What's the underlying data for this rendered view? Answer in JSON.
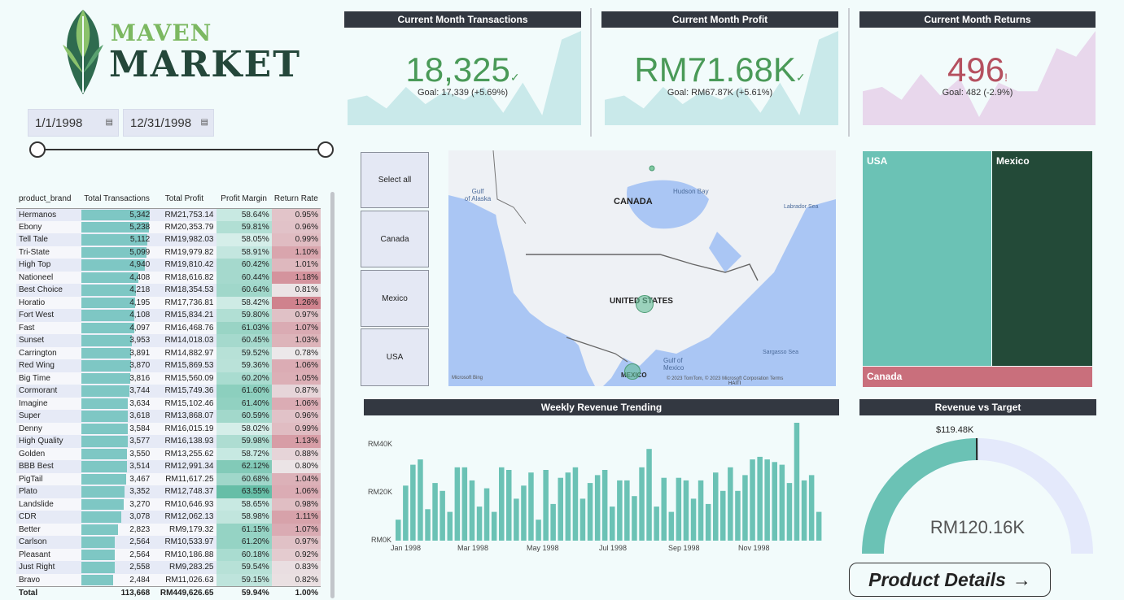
{
  "logo": {
    "line1": "MAVEN",
    "line2": "MARKET"
  },
  "date_filter": {
    "start": "1/1/1998",
    "end": "12/31/1998"
  },
  "kpis": [
    {
      "title": "Current Month Transactions",
      "value": "18,325",
      "mark": "✓",
      "goal": "Goal: 17,339 (+5.69%)",
      "color": "#4a9a58",
      "spark_color": "#c9e9ea",
      "spark": [
        0.2,
        0.25,
        0.1,
        0.35,
        0.15,
        0.3,
        0.2,
        0.35,
        0.05,
        0.4,
        0.02,
        0.9,
        1.0
      ]
    },
    {
      "title": "Current Month Profit",
      "value": "RM71.68K",
      "mark": "✓",
      "goal": "Goal: RM67.87K (+5.61%)",
      "color": "#4a9a58",
      "spark_color": "#c9e9ea",
      "spark": [
        0.2,
        0.25,
        0.1,
        0.35,
        0.15,
        0.3,
        0.2,
        0.35,
        0.05,
        0.4,
        0.02,
        0.9,
        1.0
      ]
    },
    {
      "title": "Current Month Returns",
      "value": "496",
      "mark": "!",
      "goal": "Goal: 482 (-2.9%)",
      "color": "#b5505f",
      "spark_color": "#e8d7ec",
      "spark": [
        0.3,
        0.35,
        0.2,
        0.5,
        0.25,
        0.45,
        0.0,
        0.4,
        0.3,
        0.3,
        0.8,
        0.7,
        1.0
      ]
    }
  ],
  "brand_table": {
    "headers": [
      "product_brand",
      "Total Transactions",
      "Total Profit",
      "Profit Margin",
      "Return Rate"
    ],
    "rows": [
      {
        "brand": "Hermanos",
        "tx": "5,342",
        "tx_n": 5342,
        "profit": "RM21,753.14",
        "margin": "58.64%",
        "margin_n": 58.64,
        "ret": "0.95%",
        "ret_n": 0.95
      },
      {
        "brand": "Ebony",
        "tx": "5,238",
        "tx_n": 5238,
        "profit": "RM20,353.79",
        "margin": "59.81%",
        "margin_n": 59.81,
        "ret": "0.96%",
        "ret_n": 0.96
      },
      {
        "brand": "Tell Tale",
        "tx": "5,112",
        "tx_n": 5112,
        "profit": "RM19,982.03",
        "margin": "58.05%",
        "margin_n": 58.05,
        "ret": "0.99%",
        "ret_n": 0.99
      },
      {
        "brand": "Tri-State",
        "tx": "5,099",
        "tx_n": 5099,
        "profit": "RM19,979.82",
        "margin": "58.91%",
        "margin_n": 58.91,
        "ret": "1.10%",
        "ret_n": 1.1
      },
      {
        "brand": "High Top",
        "tx": "4,940",
        "tx_n": 4940,
        "profit": "RM19,810.42",
        "margin": "60.42%",
        "margin_n": 60.42,
        "ret": "1.01%",
        "ret_n": 1.01
      },
      {
        "brand": "Nationeel",
        "tx": "4,408",
        "tx_n": 4408,
        "profit": "RM18,616.82",
        "margin": "60.44%",
        "margin_n": 60.44,
        "ret": "1.18%",
        "ret_n": 1.18
      },
      {
        "brand": "Best Choice",
        "tx": "4,218",
        "tx_n": 4218,
        "profit": "RM18,354.53",
        "margin": "60.64%",
        "margin_n": 60.64,
        "ret": "0.81%",
        "ret_n": 0.81
      },
      {
        "brand": "Horatio",
        "tx": "4,195",
        "tx_n": 4195,
        "profit": "RM17,736.81",
        "margin": "58.42%",
        "margin_n": 58.42,
        "ret": "1.26%",
        "ret_n": 1.26
      },
      {
        "brand": "Fort West",
        "tx": "4,108",
        "tx_n": 4108,
        "profit": "RM15,834.21",
        "margin": "59.80%",
        "margin_n": 59.8,
        "ret": "0.97%",
        "ret_n": 0.97
      },
      {
        "brand": "Fast",
        "tx": "4,097",
        "tx_n": 4097,
        "profit": "RM16,468.76",
        "margin": "61.03%",
        "margin_n": 61.03,
        "ret": "1.07%",
        "ret_n": 1.07
      },
      {
        "brand": "Sunset",
        "tx": "3,953",
        "tx_n": 3953,
        "profit": "RM14,018.03",
        "margin": "60.45%",
        "margin_n": 60.45,
        "ret": "1.03%",
        "ret_n": 1.03
      },
      {
        "brand": "Carrington",
        "tx": "3,891",
        "tx_n": 3891,
        "profit": "RM14,882.97",
        "margin": "59.52%",
        "margin_n": 59.52,
        "ret": "0.78%",
        "ret_n": 0.78
      },
      {
        "brand": "Red Wing",
        "tx": "3,870",
        "tx_n": 3870,
        "profit": "RM15,869.53",
        "margin": "59.36%",
        "margin_n": 59.36,
        "ret": "1.06%",
        "ret_n": 1.06
      },
      {
        "brand": "Big Time",
        "tx": "3,816",
        "tx_n": 3816,
        "profit": "RM15,560.09",
        "margin": "60.20%",
        "margin_n": 60.2,
        "ret": "1.05%",
        "ret_n": 1.05
      },
      {
        "brand": "Cormorant",
        "tx": "3,744",
        "tx_n": 3744,
        "profit": "RM15,749.36",
        "margin": "61.60%",
        "margin_n": 61.6,
        "ret": "0.87%",
        "ret_n": 0.87
      },
      {
        "brand": "Imagine",
        "tx": "3,634",
        "tx_n": 3634,
        "profit": "RM15,102.46",
        "margin": "61.40%",
        "margin_n": 61.4,
        "ret": "1.06%",
        "ret_n": 1.06
      },
      {
        "brand": "Super",
        "tx": "3,618",
        "tx_n": 3618,
        "profit": "RM13,868.07",
        "margin": "60.59%",
        "margin_n": 60.59,
        "ret": "0.96%",
        "ret_n": 0.96
      },
      {
        "brand": "Denny",
        "tx": "3,584",
        "tx_n": 3584,
        "profit": "RM16,015.19",
        "margin": "58.02%",
        "margin_n": 58.02,
        "ret": "0.99%",
        "ret_n": 0.99
      },
      {
        "brand": "High Quality",
        "tx": "3,577",
        "tx_n": 3577,
        "profit": "RM16,138.93",
        "margin": "59.98%",
        "margin_n": 59.98,
        "ret": "1.13%",
        "ret_n": 1.13
      },
      {
        "brand": "Golden",
        "tx": "3,550",
        "tx_n": 3550,
        "profit": "RM13,255.62",
        "margin": "58.72%",
        "margin_n": 58.72,
        "ret": "0.88%",
        "ret_n": 0.88
      },
      {
        "brand": "BBB Best",
        "tx": "3,514",
        "tx_n": 3514,
        "profit": "RM12,991.34",
        "margin": "62.12%",
        "margin_n": 62.12,
        "ret": "0.80%",
        "ret_n": 0.8
      },
      {
        "brand": "PigTail",
        "tx": "3,467",
        "tx_n": 3467,
        "profit": "RM11,617.25",
        "margin": "60.68%",
        "margin_n": 60.68,
        "ret": "1.04%",
        "ret_n": 1.04
      },
      {
        "brand": "Plato",
        "tx": "3,352",
        "tx_n": 3352,
        "profit": "RM12,748.37",
        "margin": "63.55%",
        "margin_n": 63.55,
        "ret": "1.06%",
        "ret_n": 1.06
      },
      {
        "brand": "Landslide",
        "tx": "3,270",
        "tx_n": 3270,
        "profit": "RM10,646.93",
        "margin": "58.65%",
        "margin_n": 58.65,
        "ret": "0.98%",
        "ret_n": 0.98
      },
      {
        "brand": "CDR",
        "tx": "3,078",
        "tx_n": 3078,
        "profit": "RM12,062.13",
        "margin": "58.98%",
        "margin_n": 58.98,
        "ret": "1.11%",
        "ret_n": 1.11
      },
      {
        "brand": "Better",
        "tx": "2,823",
        "tx_n": 2823,
        "profit": "RM9,179.32",
        "margin": "61.15%",
        "margin_n": 61.15,
        "ret": "1.07%",
        "ret_n": 1.07
      },
      {
        "brand": "Carlson",
        "tx": "2,564",
        "tx_n": 2564,
        "profit": "RM10,533.97",
        "margin": "61.20%",
        "margin_n": 61.2,
        "ret": "0.97%",
        "ret_n": 0.97
      },
      {
        "brand": "Pleasant",
        "tx": "2,564",
        "tx_n": 2564,
        "profit": "RM10,186.88",
        "margin": "60.18%",
        "margin_n": 60.18,
        "ret": "0.92%",
        "ret_n": 0.92
      },
      {
        "brand": "Just Right",
        "tx": "2,558",
        "tx_n": 2558,
        "profit": "RM9,283.25",
        "margin": "59.54%",
        "margin_n": 59.54,
        "ret": "0.83%",
        "ret_n": 0.83
      },
      {
        "brand": "Bravo",
        "tx": "2,484",
        "tx_n": 2484,
        "profit": "RM11,026.63",
        "margin": "59.15%",
        "margin_n": 59.15,
        "ret": "0.82%",
        "ret_n": 0.82
      }
    ],
    "total": {
      "label": "Total",
      "tx": "113,668",
      "profit": "RM449,626.65",
      "margin": "59.94%",
      "ret": "1.00%"
    }
  },
  "country_slicer": [
    "Select all",
    "Canada",
    "Mexico",
    "USA"
  ],
  "map": {
    "labels": {
      "canada": "CANADA",
      "usa": "UNITED STATES",
      "mexico": "MEXICO",
      "gulf_alaska": "Gulf\nof Alaska",
      "hudson": "Hudson Bay",
      "labrador": "Labrador Sea",
      "sargasso": "Sargasso Sea",
      "gulf_mexico": "Gulf of\nMexico",
      "haiti": "HAITI"
    },
    "attribution": "© 2023 TomTom, © 2023 Microsoft Corporation  Terms",
    "bing": "Microsoft Bing"
  },
  "treemap": [
    {
      "label": "USA",
      "color": "#6bc2b5"
    },
    {
      "label": "Mexico",
      "color": "#234a38"
    },
    {
      "label": "Canada",
      "color": "#c96f7c"
    }
  ],
  "weekly_chart": {
    "title": "Weekly Revenue Trending",
    "y_ticks": [
      "RM40K",
      "RM20K",
      "RM0K"
    ],
    "x_ticks": [
      "Jan 1998",
      "Mar 1998",
      "May 1998",
      "Jul 1998",
      "Sep 1998",
      "Nov 1998"
    ]
  },
  "gauge": {
    "title": "Revenue vs Target",
    "value_label": "RM120.16K",
    "target_label": "$119.48K",
    "value": 120.16,
    "target": 119.48,
    "max": 240
  },
  "product_button": {
    "label": "Product Details",
    "arrow": "→"
  },
  "colors": {
    "teal": "#6bc2b5",
    "dark_green": "#234a38",
    "rose": "#c96f7c",
    "header": "#333841"
  },
  "chart_data": {
    "type": "bar",
    "title": "Weekly Revenue Trending",
    "ylabel": "",
    "ylim": [
      0,
      45000
    ],
    "x_ticks": [
      "Jan 1998",
      "Mar 1998",
      "May 1998",
      "Jul 1998",
      "Sep 1998",
      "Nov 1998"
    ],
    "values": [
      8000,
      21000,
      29000,
      31000,
      12000,
      22000,
      19000,
      11000,
      28000,
      28000,
      23000,
      13000,
      20000,
      11000,
      28000,
      27000,
      16000,
      21000,
      26000,
      8000,
      27000,
      14000,
      24000,
      26000,
      28000,
      16000,
      22000,
      25000,
      27000,
      13000,
      23000,
      23000,
      17000,
      28000,
      35000,
      13000,
      24000,
      11000,
      24000,
      23000,
      16000,
      23000,
      14000,
      26000,
      19000,
      28000,
      19000,
      25000,
      31000,
      32000,
      31000,
      30000,
      29000,
      22000,
      45000,
      23000,
      25000,
      11000
    ]
  }
}
